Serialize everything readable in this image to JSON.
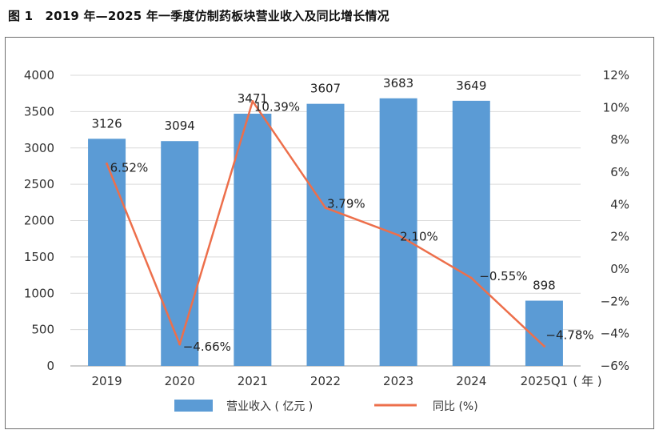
{
  "figure": {
    "title": "图 1　2019 年—2025 年一季度仿制药板块营业收入及同比增长情况"
  },
  "chart_data": {
    "type": "bar",
    "categories": [
      "2019",
      "2020",
      "2021",
      "2022",
      "2023",
      "2024",
      "2025Q1"
    ],
    "x_unit_label": "( 年 )",
    "series": [
      {
        "name": "营业收入 ( 亿元 )",
        "type": "bar",
        "axis": "left",
        "values": [
          3126,
          3094,
          3471,
          3607,
          3683,
          3649,
          898
        ],
        "labels": [
          "3126",
          "3094",
          "3471",
          "3607",
          "3683",
          "3649",
          "898"
        ],
        "color": "#5b9bd5"
      },
      {
        "name": "同比 (%)",
        "type": "line",
        "axis": "right",
        "values": [
          6.52,
          -4.66,
          10.39,
          3.79,
          2.1,
          -0.55,
          -4.78
        ],
        "labels": [
          "6.52%",
          "−4.66%",
          "10.39%",
          "3.79%",
          "2.10%",
          "−0.55%",
          "−4.78%"
        ],
        "color": "#ed6f4b"
      }
    ],
    "y_left": {
      "range": [
        0,
        4000
      ],
      "step": 500,
      "ticks": [
        "0",
        "500",
        "1000",
        "1500",
        "2000",
        "2500",
        "3000",
        "3500",
        "4000"
      ]
    },
    "y_right": {
      "range": [
        -6,
        12
      ],
      "step": 2,
      "ticks": [
        "−6%",
        "−4%",
        "−2%",
        "0%",
        "2%",
        "4%",
        "6%",
        "8%",
        "10%",
        "12%"
      ]
    },
    "grid": true,
    "legend_position": "bottom"
  }
}
